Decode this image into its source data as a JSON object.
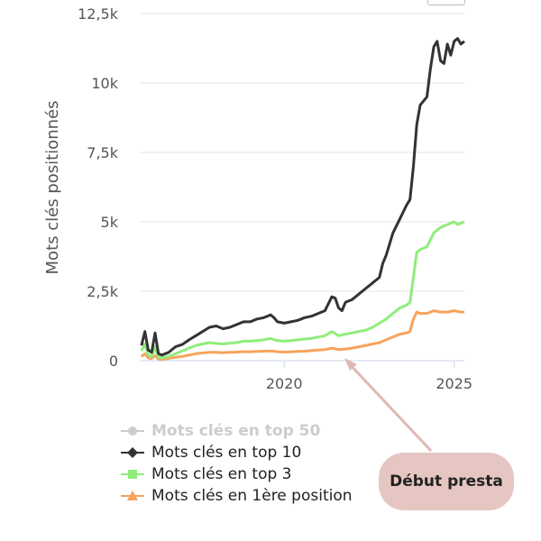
{
  "chart_data": {
    "type": "line",
    "ylabel": "Mots clés positionnés",
    "xlabel": "",
    "y_ticks": [
      "0",
      "2,5k",
      "5k",
      "7,5k",
      "10k",
      "12,5k"
    ],
    "y_tick_values": [
      0,
      2500,
      5000,
      7500,
      10000,
      12500
    ],
    "x_ticks": [
      "2020",
      "2025"
    ],
    "x_tick_values": [
      2020,
      2025
    ],
    "xlim": [
      2015.75,
      2025.3
    ],
    "ylim": [
      0,
      12500
    ],
    "grid": true,
    "legend_position": "bottom-left",
    "series": [
      {
        "name": "Mots clés en top 50",
        "color": "#cccccc",
        "marker": "circle",
        "hidden": true,
        "points": []
      },
      {
        "name": "Mots clés en top 10",
        "color": "#333333",
        "marker": "diamond",
        "points": [
          [
            2015.8,
            550
          ],
          [
            2015.9,
            1050
          ],
          [
            2016.0,
            380
          ],
          [
            2016.1,
            300
          ],
          [
            2016.2,
            1000
          ],
          [
            2016.3,
            250
          ],
          [
            2016.4,
            200
          ],
          [
            2016.6,
            300
          ],
          [
            2016.8,
            500
          ],
          [
            2017.0,
            580
          ],
          [
            2017.2,
            750
          ],
          [
            2017.4,
            900
          ],
          [
            2017.6,
            1050
          ],
          [
            2017.8,
            1200
          ],
          [
            2018.0,
            1250
          ],
          [
            2018.2,
            1150
          ],
          [
            2018.4,
            1200
          ],
          [
            2018.6,
            1300
          ],
          [
            2018.8,
            1400
          ],
          [
            2019.0,
            1400
          ],
          [
            2019.2,
            1500
          ],
          [
            2019.4,
            1550
          ],
          [
            2019.6,
            1650
          ],
          [
            2019.7,
            1550
          ],
          [
            2019.8,
            1400
          ],
          [
            2020.0,
            1350
          ],
          [
            2020.2,
            1400
          ],
          [
            2020.4,
            1450
          ],
          [
            2020.6,
            1550
          ],
          [
            2020.8,
            1600
          ],
          [
            2021.0,
            1700
          ],
          [
            2021.2,
            1800
          ],
          [
            2021.4,
            2300
          ],
          [
            2021.5,
            2250
          ],
          [
            2021.6,
            1900
          ],
          [
            2021.7,
            1800
          ],
          [
            2021.8,
            2100
          ],
          [
            2022.0,
            2200
          ],
          [
            2022.2,
            2400
          ],
          [
            2022.4,
            2600
          ],
          [
            2022.6,
            2800
          ],
          [
            2022.8,
            3000
          ],
          [
            2022.9,
            3500
          ],
          [
            2023.0,
            3800
          ],
          [
            2023.1,
            4200
          ],
          [
            2023.2,
            4600
          ],
          [
            2023.4,
            5100
          ],
          [
            2023.6,
            5600
          ],
          [
            2023.7,
            5800
          ],
          [
            2023.8,
            7000
          ],
          [
            2023.9,
            8500
          ],
          [
            2024.0,
            9200
          ],
          [
            2024.2,
            9500
          ],
          [
            2024.3,
            10500
          ],
          [
            2024.4,
            11300
          ],
          [
            2024.5,
            11500
          ],
          [
            2024.6,
            10800
          ],
          [
            2024.7,
            10700
          ],
          [
            2024.8,
            11400
          ],
          [
            2024.9,
            11000
          ],
          [
            2025.0,
            11500
          ],
          [
            2025.1,
            11600
          ],
          [
            2025.2,
            11400
          ],
          [
            2025.3,
            11500
          ]
        ]
      },
      {
        "name": "Mots clés en top 3",
        "color": "#90ed7d",
        "marker": "square",
        "points": [
          [
            2015.8,
            350
          ],
          [
            2015.9,
            600
          ],
          [
            2016.0,
            200
          ],
          [
            2016.1,
            150
          ],
          [
            2016.2,
            500
          ],
          [
            2016.3,
            120
          ],
          [
            2016.4,
            100
          ],
          [
            2016.6,
            150
          ],
          [
            2016.8,
            250
          ],
          [
            2017.0,
            350
          ],
          [
            2017.2,
            450
          ],
          [
            2017.4,
            550
          ],
          [
            2017.6,
            600
          ],
          [
            2017.8,
            650
          ],
          [
            2018.0,
            620
          ],
          [
            2018.2,
            600
          ],
          [
            2018.4,
            630
          ],
          [
            2018.6,
            650
          ],
          [
            2018.8,
            700
          ],
          [
            2019.0,
            700
          ],
          [
            2019.2,
            720
          ],
          [
            2019.4,
            750
          ],
          [
            2019.6,
            800
          ],
          [
            2019.8,
            720
          ],
          [
            2020.0,
            700
          ],
          [
            2020.2,
            720
          ],
          [
            2020.4,
            750
          ],
          [
            2020.6,
            780
          ],
          [
            2020.8,
            800
          ],
          [
            2021.0,
            850
          ],
          [
            2021.2,
            900
          ],
          [
            2021.4,
            1050
          ],
          [
            2021.6,
            900
          ],
          [
            2021.8,
            950
          ],
          [
            2022.0,
            1000
          ],
          [
            2022.2,
            1050
          ],
          [
            2022.4,
            1100
          ],
          [
            2022.6,
            1200
          ],
          [
            2022.8,
            1350
          ],
          [
            2023.0,
            1500
          ],
          [
            2023.2,
            1700
          ],
          [
            2023.4,
            1900
          ],
          [
            2023.6,
            2000
          ],
          [
            2023.7,
            2100
          ],
          [
            2023.8,
            3000
          ],
          [
            2023.9,
            3900
          ],
          [
            2024.0,
            4000
          ],
          [
            2024.2,
            4100
          ],
          [
            2024.4,
            4600
          ],
          [
            2024.6,
            4800
          ],
          [
            2024.8,
            4900
          ],
          [
            2025.0,
            5000
          ],
          [
            2025.1,
            4900
          ],
          [
            2025.2,
            4950
          ],
          [
            2025.3,
            5000
          ]
        ]
      },
      {
        "name": "Mots clés en 1ère position",
        "color": "#f7a35c",
        "marker": "triangle",
        "points": [
          [
            2015.8,
            150
          ],
          [
            2015.9,
            250
          ],
          [
            2016.0,
            100
          ],
          [
            2016.1,
            80
          ],
          [
            2016.2,
            180
          ],
          [
            2016.3,
            60
          ],
          [
            2016.4,
            50
          ],
          [
            2016.6,
            80
          ],
          [
            2016.8,
            120
          ],
          [
            2017.0,
            150
          ],
          [
            2017.2,
            200
          ],
          [
            2017.4,
            250
          ],
          [
            2017.6,
            280
          ],
          [
            2017.8,
            300
          ],
          [
            2018.0,
            300
          ],
          [
            2018.2,
            290
          ],
          [
            2018.4,
            300
          ],
          [
            2018.6,
            310
          ],
          [
            2018.8,
            320
          ],
          [
            2019.0,
            320
          ],
          [
            2019.2,
            330
          ],
          [
            2019.4,
            340
          ],
          [
            2019.6,
            350
          ],
          [
            2019.8,
            320
          ],
          [
            2020.0,
            310
          ],
          [
            2020.2,
            320
          ],
          [
            2020.4,
            330
          ],
          [
            2020.6,
            340
          ],
          [
            2020.8,
            360
          ],
          [
            2021.0,
            380
          ],
          [
            2021.2,
            400
          ],
          [
            2021.4,
            450
          ],
          [
            2021.6,
            400
          ],
          [
            2021.8,
            420
          ],
          [
            2022.0,
            450
          ],
          [
            2022.2,
            500
          ],
          [
            2022.4,
            550
          ],
          [
            2022.6,
            600
          ],
          [
            2022.8,
            650
          ],
          [
            2023.0,
            750
          ],
          [
            2023.2,
            850
          ],
          [
            2023.4,
            950
          ],
          [
            2023.6,
            1000
          ],
          [
            2023.7,
            1050
          ],
          [
            2023.8,
            1500
          ],
          [
            2023.9,
            1750
          ],
          [
            2024.0,
            1700
          ],
          [
            2024.2,
            1700
          ],
          [
            2024.4,
            1800
          ],
          [
            2024.6,
            1750
          ],
          [
            2024.8,
            1750
          ],
          [
            2025.0,
            1800
          ],
          [
            2025.2,
            1750
          ],
          [
            2025.3,
            1750
          ]
        ]
      }
    ]
  },
  "callout": {
    "label": "Début presta",
    "bg_color": "#e6c6c2",
    "arrow_color": "#e0b8b3"
  }
}
